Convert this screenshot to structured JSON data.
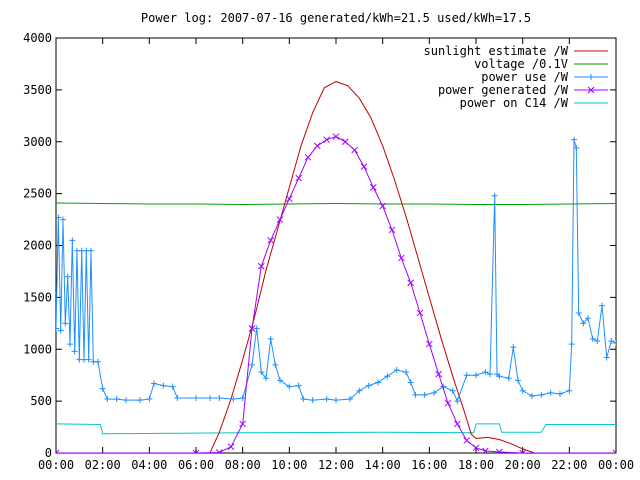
{
  "chart_data": {
    "type": "line",
    "title": "Power log: 2007-07-16 generated/kWh=21.5 used/kWh=17.5",
    "xlabel": "",
    "ylabel": "",
    "x_ticks": [
      "00:00",
      "02:00",
      "04:00",
      "06:00",
      "08:00",
      "10:00",
      "12:00",
      "14:00",
      "16:00",
      "18:00",
      "20:00",
      "22:00",
      "00:00"
    ],
    "x_range_hours": [
      0,
      24
    ],
    "y_ticks": [
      "0",
      "500",
      "1000",
      "1500",
      "2000",
      "2500",
      "3000",
      "3500",
      "4000"
    ],
    "ylim": [
      0,
      4000
    ],
    "grid": false,
    "legend_position": "top-right",
    "series": [
      {
        "name": "sunlight estimate /W",
        "color": "#c00000",
        "marker": "none",
        "points": [
          [
            6.6,
            0
          ],
          [
            7.0,
            200
          ],
          [
            7.5,
            520
          ],
          [
            8.0,
            900
          ],
          [
            8.5,
            1300
          ],
          [
            9.0,
            1760
          ],
          [
            9.5,
            2160
          ],
          [
            10.0,
            2560
          ],
          [
            10.5,
            2960
          ],
          [
            11.0,
            3280
          ],
          [
            11.5,
            3520
          ],
          [
            12.0,
            3580
          ],
          [
            12.5,
            3540
          ],
          [
            13.0,
            3420
          ],
          [
            13.5,
            3230
          ],
          [
            14.0,
            2960
          ],
          [
            14.5,
            2640
          ],
          [
            15.0,
            2280
          ],
          [
            15.5,
            1890
          ],
          [
            16.0,
            1500
          ],
          [
            16.5,
            1110
          ],
          [
            17.0,
            740
          ],
          [
            17.5,
            400
          ],
          [
            17.8,
            180
          ],
          [
            18.0,
            140
          ],
          [
            18.5,
            150
          ],
          [
            19.0,
            130
          ],
          [
            19.5,
            90
          ],
          [
            20.0,
            40
          ],
          [
            20.5,
            0
          ]
        ]
      },
      {
        "name": "voltage /0.1V",
        "color": "#00a000",
        "marker": "none",
        "points": [
          [
            0,
            2410
          ],
          [
            2,
            2405
          ],
          [
            4,
            2400
          ],
          [
            6,
            2400
          ],
          [
            8,
            2395
          ],
          [
            10,
            2400
          ],
          [
            12,
            2405
          ],
          [
            14,
            2400
          ],
          [
            16,
            2400
          ],
          [
            18,
            2395
          ],
          [
            20,
            2395
          ],
          [
            22,
            2400
          ],
          [
            24,
            2405
          ]
        ]
      },
      {
        "name": "power use /W",
        "color": "#1e90ff",
        "marker": "+",
        "points": [
          [
            0,
            1200
          ],
          [
            0.1,
            2270
          ],
          [
            0.2,
            1180
          ],
          [
            0.3,
            2250
          ],
          [
            0.4,
            1250
          ],
          [
            0.5,
            1700
          ],
          [
            0.6,
            1050
          ],
          [
            0.7,
            2050
          ],
          [
            0.8,
            980
          ],
          [
            0.9,
            1950
          ],
          [
            1.0,
            900
          ],
          [
            1.1,
            1950
          ],
          [
            1.2,
            900
          ],
          [
            1.3,
            1950
          ],
          [
            1.4,
            900
          ],
          [
            1.5,
            1950
          ],
          [
            1.6,
            880
          ],
          [
            1.8,
            880
          ],
          [
            2.0,
            620
          ],
          [
            2.2,
            520
          ],
          [
            2.6,
            520
          ],
          [
            3.0,
            510
          ],
          [
            3.6,
            510
          ],
          [
            4.0,
            520
          ],
          [
            4.2,
            670
          ],
          [
            4.6,
            650
          ],
          [
            5.0,
            640
          ],
          [
            5.2,
            530
          ],
          [
            6.0,
            530
          ],
          [
            6.6,
            530
          ],
          [
            7.0,
            530
          ],
          [
            7.6,
            520
          ],
          [
            8.0,
            530
          ],
          [
            8.4,
            850
          ],
          [
            8.6,
            1200
          ],
          [
            8.8,
            780
          ],
          [
            9.0,
            720
          ],
          [
            9.2,
            1100
          ],
          [
            9.4,
            850
          ],
          [
            9.6,
            700
          ],
          [
            10.0,
            640
          ],
          [
            10.4,
            650
          ],
          [
            10.6,
            520
          ],
          [
            11.0,
            510
          ],
          [
            11.6,
            520
          ],
          [
            12.0,
            510
          ],
          [
            12.6,
            520
          ],
          [
            13.0,
            600
          ],
          [
            13.4,
            650
          ],
          [
            13.8,
            680
          ],
          [
            14.2,
            740
          ],
          [
            14.6,
            800
          ],
          [
            15.0,
            780
          ],
          [
            15.2,
            680
          ],
          [
            15.4,
            560
          ],
          [
            15.8,
            560
          ],
          [
            16.2,
            580
          ],
          [
            16.6,
            640
          ],
          [
            17.0,
            600
          ],
          [
            17.2,
            500
          ],
          [
            17.6,
            750
          ],
          [
            18.0,
            750
          ],
          [
            18.4,
            780
          ],
          [
            18.6,
            760
          ],
          [
            18.8,
            2480
          ],
          [
            18.9,
            760
          ],
          [
            19.0,
            740
          ],
          [
            19.4,
            720
          ],
          [
            19.6,
            1020
          ],
          [
            19.8,
            700
          ],
          [
            20.0,
            600
          ],
          [
            20.4,
            550
          ],
          [
            20.8,
            560
          ],
          [
            21.2,
            580
          ],
          [
            21.6,
            570
          ],
          [
            22.0,
            600
          ],
          [
            22.1,
            1050
          ],
          [
            22.2,
            3020
          ],
          [
            22.3,
            2940
          ],
          [
            22.4,
            1350
          ],
          [
            22.6,
            1250
          ],
          [
            22.8,
            1300
          ],
          [
            23.0,
            1100
          ],
          [
            23.2,
            1080
          ],
          [
            23.4,
            1420
          ],
          [
            23.6,
            920
          ],
          [
            23.8,
            1080
          ],
          [
            24.0,
            1060
          ]
        ]
      },
      {
        "name": "power generated /W",
        "color": "#a000ff",
        "marker": "x",
        "points": [
          [
            0,
            0
          ],
          [
            6.0,
            0
          ],
          [
            7.0,
            5
          ],
          [
            7.5,
            60
          ],
          [
            8.0,
            280
          ],
          [
            8.4,
            1200
          ],
          [
            8.8,
            1800
          ],
          [
            9.2,
            2050
          ],
          [
            9.6,
            2250
          ],
          [
            10.0,
            2450
          ],
          [
            10.4,
            2650
          ],
          [
            10.8,
            2850
          ],
          [
            11.2,
            2960
          ],
          [
            11.6,
            3020
          ],
          [
            12.0,
            3050
          ],
          [
            12.4,
            3000
          ],
          [
            12.8,
            2920
          ],
          [
            13.2,
            2760
          ],
          [
            13.6,
            2560
          ],
          [
            14.0,
            2380
          ],
          [
            14.4,
            2150
          ],
          [
            14.8,
            1880
          ],
          [
            15.2,
            1640
          ],
          [
            15.6,
            1350
          ],
          [
            16.0,
            1050
          ],
          [
            16.4,
            760
          ],
          [
            16.8,
            480
          ],
          [
            17.2,
            280
          ],
          [
            17.6,
            120
          ],
          [
            18.0,
            50
          ],
          [
            18.4,
            20
          ],
          [
            19.0,
            10
          ],
          [
            20.0,
            0
          ],
          [
            24.0,
            0
          ]
        ]
      },
      {
        "name": "power on C14 /W",
        "color": "#00c8c8",
        "marker": "none",
        "points": [
          [
            0,
            280
          ],
          [
            1.9,
            275
          ],
          [
            2.0,
            185
          ],
          [
            8.0,
            195
          ],
          [
            14.0,
            200
          ],
          [
            17.9,
            195
          ],
          [
            18.0,
            280
          ],
          [
            19.0,
            280
          ],
          [
            19.1,
            200
          ],
          [
            20.8,
            200
          ],
          [
            21.0,
            275
          ],
          [
            24.0,
            275
          ]
        ]
      }
    ]
  }
}
